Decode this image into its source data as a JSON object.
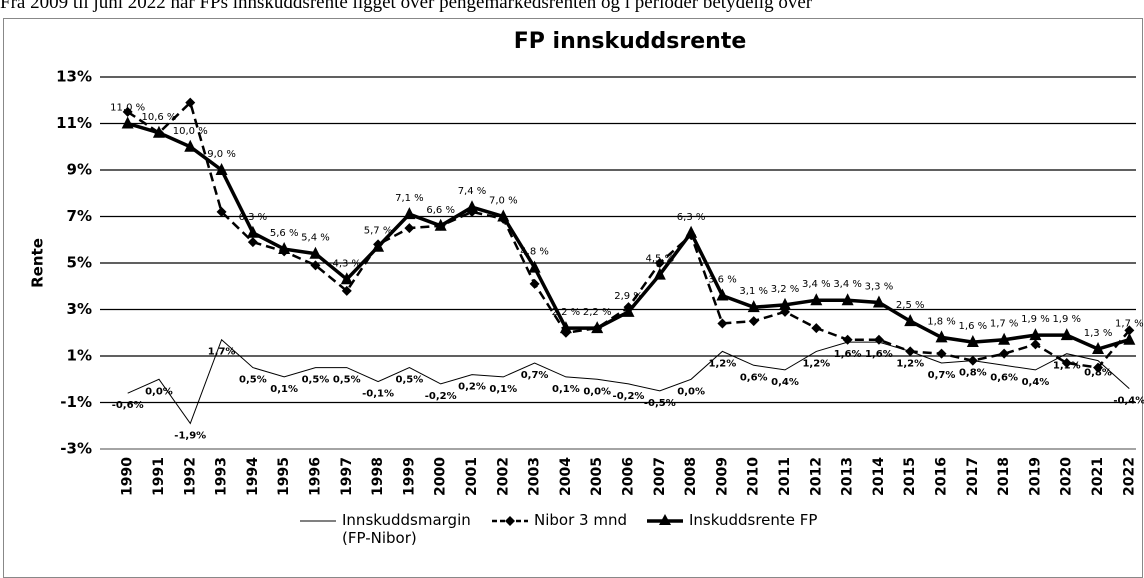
{
  "intro": "Fra 2009 til juni 2022 har FPs innskuddsrente ligget over pengemarkedsrenten og i perioder betydelig over",
  "chart_data": {
    "type": "line",
    "title": "FP innskuddsrente",
    "y_label": "Rente",
    "categories": [
      "1990",
      "1991",
      "1992",
      "1993",
      "1994",
      "1995",
      "1996",
      "1997",
      "1998",
      "1999",
      "2000",
      "2001",
      "2002",
      "2003",
      "2004",
      "2005",
      "2006",
      "2007",
      "2008",
      "2009",
      "2010",
      "2011",
      "2012",
      "2013",
      "2014",
      "2015",
      "2016",
      "2017",
      "2018",
      "2019",
      "2020",
      "2021",
      "2022"
    ],
    "ylim": [
      -3,
      13
    ],
    "yticks": [
      {
        "value": -3,
        "label": "-3%"
      },
      {
        "value": -1,
        "label": "-1%"
      },
      {
        "value": 1,
        "label": "1%"
      },
      {
        "value": 3,
        "label": "3%"
      },
      {
        "value": 5,
        "label": "5%"
      },
      {
        "value": 7,
        "label": "7%"
      },
      {
        "value": 9,
        "label": "9%"
      },
      {
        "value": 11,
        "label": "11%"
      },
      {
        "value": 13,
        "label": "13%"
      }
    ],
    "grid": true,
    "series": [
      {
        "name": "Innskuddsmargin (FP-Nibor)",
        "color": "#000000",
        "style": "thin",
        "values": [
          -0.6,
          0.0,
          -1.9,
          1.7,
          0.5,
          0.1,
          0.5,
          0.5,
          -0.1,
          0.5,
          -0.2,
          0.2,
          0.1,
          0.7,
          0.1,
          0.0,
          -0.2,
          -0.5,
          0.0,
          1.2,
          0.6,
          0.4,
          1.2,
          1.6,
          1.6,
          1.2,
          0.7,
          0.8,
          0.6,
          0.4,
          1.1,
          0.8,
          -0.4
        ],
        "value_labels": [
          "-0,6%",
          "0,0%",
          "-1,9%",
          "1,7%",
          "0,5%",
          "0,1%",
          "0,5%",
          "0,5%",
          "-0,1%",
          "0,5%",
          "-0,2%",
          "0,2%",
          "0,1%",
          "0,7%",
          "0,1%",
          "0,0%",
          "-0,2%",
          "-0,5%",
          "0,0%",
          "1,2%",
          "0,6%",
          "0,4%",
          "1,2%",
          "1,6%",
          "1,6%",
          "1,2%",
          "0,7%",
          "0,8%",
          "0,6%",
          "0,4%",
          "1,1%",
          "0,8%",
          "-0,4%"
        ]
      },
      {
        "name": "Nibor 3 mnd",
        "color": "#000000",
        "style": "dashed",
        "values": [
          11.5,
          10.6,
          11.9,
          7.2,
          5.9,
          5.5,
          4.9,
          3.8,
          5.8,
          6.5,
          6.6,
          7.2,
          6.9,
          4.1,
          2.0,
          2.2,
          3.1,
          5.0,
          6.2,
          2.4,
          2.5,
          2.9,
          2.2,
          1.7,
          1.7,
          1.2,
          1.1,
          0.8,
          1.1,
          1.5,
          0.7,
          0.5,
          2.1
        ]
      },
      {
        "name": "Inskuddsrente FP",
        "color": "#000000",
        "style": "solid",
        "values": [
          11.0,
          10.6,
          10.0,
          9.0,
          6.3,
          5.6,
          5.4,
          4.3,
          5.7,
          7.1,
          6.6,
          7.4,
          7.0,
          4.8,
          2.2,
          2.2,
          2.9,
          4.5,
          6.3,
          3.6,
          3.1,
          3.2,
          3.4,
          3.4,
          3.3,
          2.5,
          1.8,
          1.6,
          1.7,
          1.9,
          1.9,
          1.3,
          1.7
        ],
        "value_labels": [
          "11,0 %",
          "10,6 %",
          "10,0 %",
          "9,0 %",
          "6,3 %",
          "5,6 %",
          "5,4 %",
          "4,3 %",
          "5,7 %",
          "7,1 %",
          "6,6 %",
          "7,4 %",
          "7,0 %",
          "4,8 %",
          "2,2 %",
          "2,2 %",
          "2,9 %",
          "4,5 %",
          "6,3 %",
          "3,6 %",
          "3,1 %",
          "3,2 %",
          "3,4 %",
          "3,4 %",
          "3,3 %",
          "2,5 %",
          "1,8 %",
          "1,6 %",
          "1,7 %",
          "1,9 %",
          "1,9 %",
          "1,3 %",
          "1,7 %"
        ]
      }
    ]
  }
}
